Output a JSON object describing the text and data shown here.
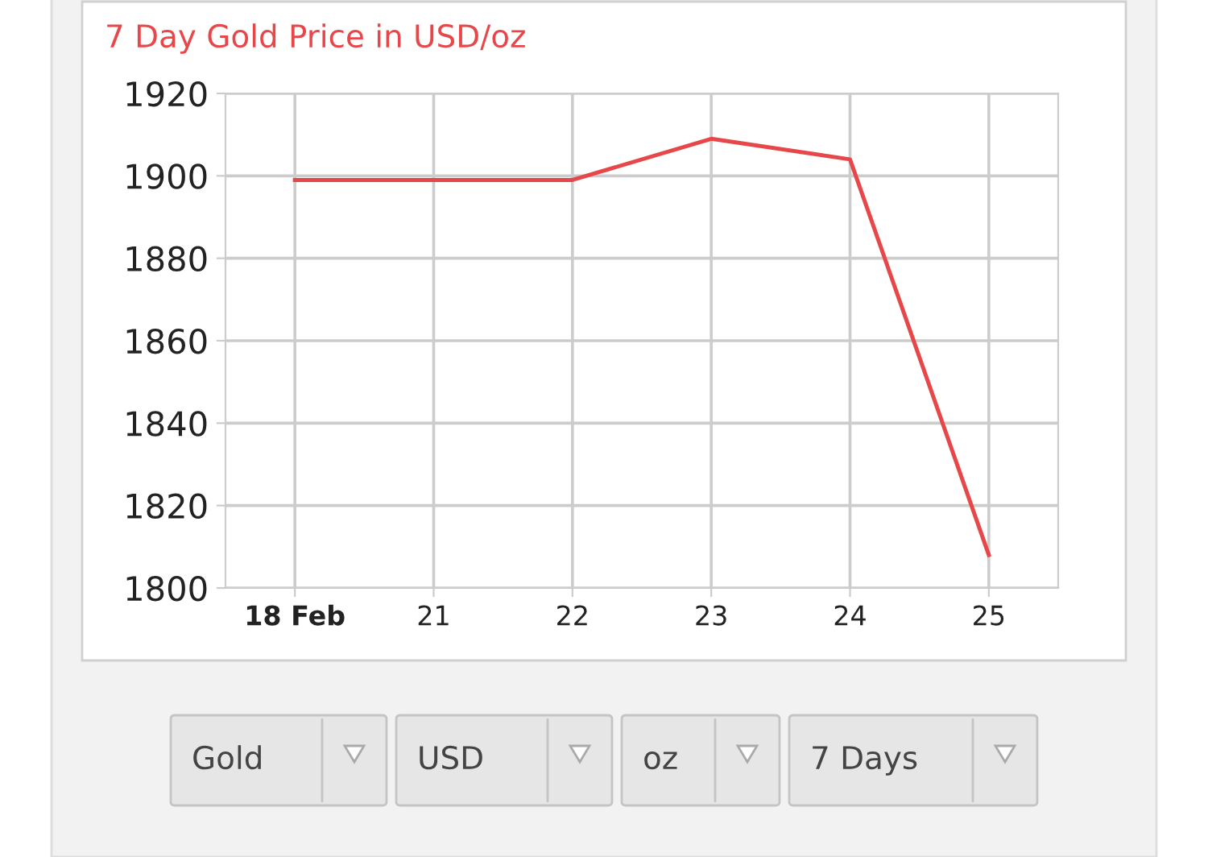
{
  "chart_data": {
    "type": "line",
    "title": "7 Day Gold Price in USD/oz",
    "categories": [
      "18 Feb",
      "21",
      "22",
      "23",
      "24",
      "25"
    ],
    "series": [
      {
        "color": "#e8474a",
        "values": [
          1899,
          1899,
          1899,
          1909,
          1904,
          1808
        ]
      }
    ],
    "ylim": [
      1800,
      1920
    ],
    "yticks": [
      1800,
      1820,
      1840,
      1860,
      1880,
      1900,
      1920
    ],
    "grid": true,
    "marker": "none",
    "line_style": "solid",
    "annotations": [
      "Gold",
      "USD",
      "oz",
      "7 Days"
    ]
  }
}
